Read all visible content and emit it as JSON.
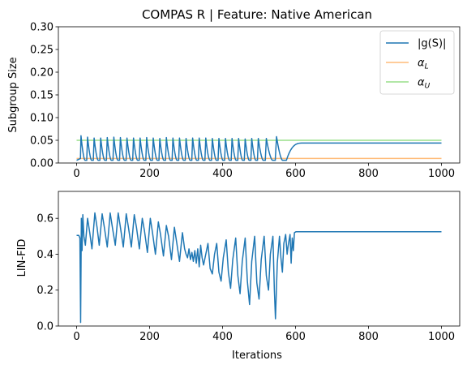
{
  "chart_data": [
    {
      "type": "line",
      "title": "COMPAS R | Feature:  Native American",
      "xlabel": "",
      "ylabel": "Subgroup Size",
      "xlim": [
        -50,
        1050
      ],
      "ylim": [
        0,
        0.3
      ],
      "xticks": [
        0,
        200,
        400,
        600,
        800,
        1000
      ],
      "yticks": [
        "0.00",
        "0.05",
        "0.10",
        "0.15",
        "0.20",
        "0.25",
        "0.30"
      ],
      "legend_position": "top-right",
      "series": [
        {
          "name": "|g(S)|",
          "color": "#1f77b4",
          "peaks": [
            [
              12,
              0.06
            ],
            [
              30,
              0.057
            ],
            [
              48,
              0.055
            ],
            [
              66,
              0.055
            ],
            [
              84,
              0.056
            ],
            [
              102,
              0.057
            ],
            [
              120,
              0.056
            ],
            [
              138,
              0.055
            ],
            [
              156,
              0.055
            ],
            [
              174,
              0.055
            ],
            [
              192,
              0.056
            ],
            [
              210,
              0.055
            ],
            [
              228,
              0.054
            ],
            [
              246,
              0.056
            ],
            [
              264,
              0.055
            ],
            [
              282,
              0.055
            ],
            [
              300,
              0.054
            ],
            [
              318,
              0.055
            ],
            [
              336,
              0.055
            ],
            [
              354,
              0.055
            ],
            [
              372,
              0.054
            ],
            [
              390,
              0.054
            ],
            [
              408,
              0.054
            ],
            [
              426,
              0.054
            ],
            [
              444,
              0.054
            ],
            [
              462,
              0.053
            ],
            [
              480,
              0.054
            ],
            [
              498,
              0.054
            ],
            [
              520,
              0.054
            ],
            [
              548,
              0.058
            ]
          ],
          "trough": 0.006,
          "settle_start": 575,
          "settle_end": 620,
          "steady": 0.044,
          "x_end": 1000
        },
        {
          "name": "$\\alpha_L$",
          "label_main": "α",
          "label_sub": "L",
          "color": "#ffbb78",
          "x": [
            0,
            1000
          ],
          "y": [
            0.01,
            0.01
          ]
        },
        {
          "name": "$\\alpha_U$",
          "label_main": "α",
          "label_sub": "U",
          "color": "#98df8a",
          "x": [
            0,
            1000
          ],
          "y": [
            0.05,
            0.05
          ]
        }
      ]
    },
    {
      "type": "line",
      "title": "",
      "xlabel": "Iterations",
      "ylabel": "LIN-FID",
      "xlim": [
        -50,
        1050
      ],
      "ylim": [
        0,
        0.75
      ],
      "xticks": [
        0,
        200,
        400,
        600,
        800,
        1000
      ],
      "yticks": [
        "0.0",
        "0.2",
        "0.4",
        "0.6"
      ],
      "series": [
        {
          "name": "",
          "color": "#1f77b4",
          "points": [
            [
              0,
              0.505
            ],
            [
              6,
              0.505
            ],
            [
              9,
              0.49
            ],
            [
              11,
              0.02
            ],
            [
              13,
              0.6
            ],
            [
              15,
              0.42
            ],
            [
              17,
              0.62
            ],
            [
              20,
              0.5
            ],
            [
              24,
              0.45
            ],
            [
              30,
              0.6
            ],
            [
              36,
              0.52
            ],
            [
              42,
              0.43
            ],
            [
              50,
              0.63
            ],
            [
              56,
              0.55
            ],
            [
              62,
              0.45
            ],
            [
              70,
              0.625
            ],
            [
              76,
              0.55
            ],
            [
              84,
              0.44
            ],
            [
              92,
              0.63
            ],
            [
              98,
              0.55
            ],
            [
              106,
              0.45
            ],
            [
              114,
              0.63
            ],
            [
              120,
              0.55
            ],
            [
              128,
              0.44
            ],
            [
              136,
              0.625
            ],
            [
              142,
              0.55
            ],
            [
              150,
              0.44
            ],
            [
              158,
              0.62
            ],
            [
              164,
              0.55
            ],
            [
              172,
              0.43
            ],
            [
              180,
              0.6
            ],
            [
              186,
              0.53
            ],
            [
              194,
              0.41
            ],
            [
              202,
              0.6
            ],
            [
              208,
              0.52
            ],
            [
              216,
              0.4
            ],
            [
              224,
              0.58
            ],
            [
              230,
              0.51
            ],
            [
              238,
              0.39
            ],
            [
              246,
              0.56
            ],
            [
              252,
              0.5
            ],
            [
              260,
              0.37
            ],
            [
              268,
              0.55
            ],
            [
              274,
              0.47
            ],
            [
              282,
              0.36
            ],
            [
              290,
              0.52
            ],
            [
              296,
              0.43
            ],
            [
              300,
              0.4
            ],
            [
              304,
              0.38
            ],
            [
              308,
              0.43
            ],
            [
              312,
              0.37
            ],
            [
              316,
              0.41
            ],
            [
              320,
              0.36
            ],
            [
              324,
              0.42
            ],
            [
              328,
              0.35
            ],
            [
              332,
              0.43
            ],
            [
              336,
              0.33
            ],
            [
              340,
              0.45
            ],
            [
              344,
              0.38
            ],
            [
              348,
              0.34
            ],
            [
              354,
              0.4
            ],
            [
              360,
              0.46
            ],
            [
              366,
              0.32
            ],
            [
              372,
              0.29
            ],
            [
              378,
              0.4
            ],
            [
              384,
              0.46
            ],
            [
              390,
              0.3
            ],
            [
              396,
              0.25
            ],
            [
              402,
              0.38
            ],
            [
              410,
              0.48
            ],
            [
              416,
              0.3
            ],
            [
              422,
              0.21
            ],
            [
              428,
              0.37
            ],
            [
              436,
              0.49
            ],
            [
              442,
              0.28
            ],
            [
              448,
              0.18
            ],
            [
              454,
              0.36
            ],
            [
              462,
              0.49
            ],
            [
              468,
              0.25
            ],
            [
              474,
              0.12
            ],
            [
              480,
              0.36
            ],
            [
              488,
              0.5
            ],
            [
              494,
              0.24
            ],
            [
              500,
              0.15
            ],
            [
              506,
              0.37
            ],
            [
              514,
              0.5
            ],
            [
              520,
              0.28
            ],
            [
              526,
              0.2
            ],
            [
              531,
              0.4
            ],
            [
              538,
              0.5
            ],
            [
              542,
              0.2
            ],
            [
              545,
              0.04
            ],
            [
              550,
              0.35
            ],
            [
              556,
              0.5
            ],
            [
              560,
              0.38
            ],
            [
              564,
              0.3
            ],
            [
              568,
              0.46
            ],
            [
              573,
              0.51
            ],
            [
              577,
              0.4
            ],
            [
              580,
              0.45
            ],
            [
              585,
              0.51
            ],
            [
              588,
              0.35
            ],
            [
              591,
              0.49
            ],
            [
              594,
              0.42
            ],
            [
              597,
              0.52
            ],
            [
              601,
              0.525
            ],
            [
              1000,
              0.525
            ]
          ]
        }
      ]
    }
  ]
}
